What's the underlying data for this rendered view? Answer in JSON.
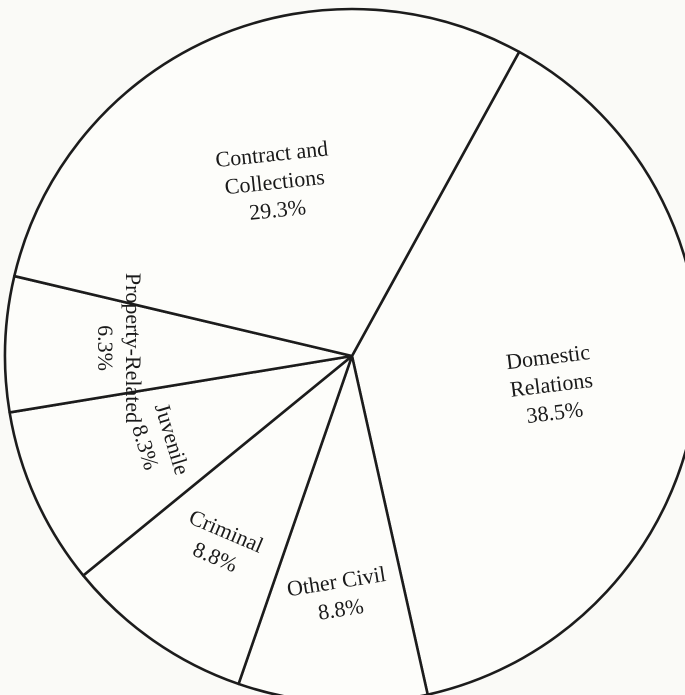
{
  "chart_data": {
    "type": "pie",
    "title": "",
    "colors": {
      "fill": "#fdfdfa",
      "stroke": "#1c1c1c",
      "text": "#1a1a1a"
    },
    "slices": [
      {
        "category": "Domestic Relations",
        "label_lines": [
          "Domestic",
          "Relations"
        ],
        "value_text": "38.5%",
        "value": 38.5
      },
      {
        "category": "Other Civil",
        "label_lines": [
          "Other Civil"
        ],
        "value_text": "8.8%",
        "value": 8.8
      },
      {
        "category": "Criminal",
        "label_lines": [
          "Criminal"
        ],
        "value_text": "8.8%",
        "value": 8.8
      },
      {
        "category": "Juvenile",
        "label_lines": [
          "Juvenile"
        ],
        "value_text": "8.3%",
        "value": 8.3
      },
      {
        "category": "Property-Related",
        "label_lines": [
          "Property-Related"
        ],
        "value_text": "6.3%",
        "value": 6.3
      },
      {
        "category": "Contract and Collections",
        "label_lines": [
          "Contract and",
          "Collections"
        ],
        "value_text": "29.3%",
        "value": 29.3
      }
    ]
  }
}
